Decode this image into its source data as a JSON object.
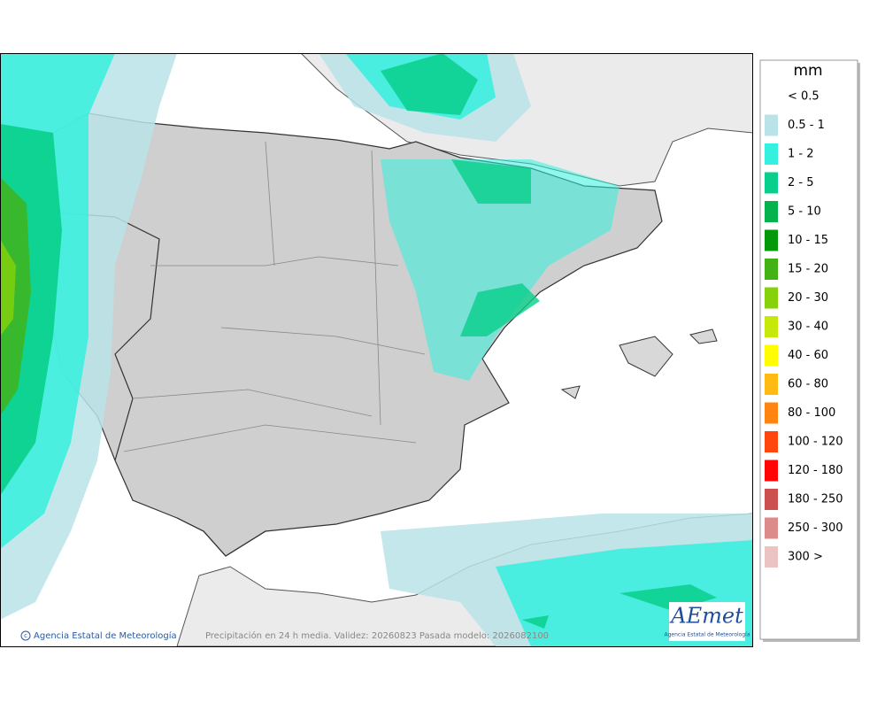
{
  "map": {
    "footer_left": "Agencia Estatal de Meteorología",
    "footer_center": "Precipitación en 24 h media. Validez: 20260823 Pasada modelo: 2026082100",
    "logo": "AEmet",
    "logo_caption": "Agencia Estatal de Meteorología"
  },
  "legend": {
    "title": "mm",
    "items": [
      {
        "label": "< 0.5"
      },
      {
        "label": "0.5 - 1",
        "color": "#b9e3e6"
      },
      {
        "label": "1 - 2",
        "color": "#35f0de"
      },
      {
        "label": "2 - 5",
        "color": "#08cf8b"
      },
      {
        "label": "5 - 10",
        "color": "#05b24e"
      },
      {
        "label": "10 - 15",
        "color": "#05990a"
      },
      {
        "label": "15 - 20",
        "color": "#43b214"
      },
      {
        "label": "20 - 30",
        "color": "#86d10a"
      },
      {
        "label": "30 - 40",
        "color": "#c6e80a"
      },
      {
        "label": "40 - 60",
        "color": "#fffc05"
      },
      {
        "label": "60 - 80",
        "color": "#ffbb14"
      },
      {
        "label": "80 - 100",
        "color": "#ff8410"
      },
      {
        "label": "100 - 120",
        "color": "#ff460c"
      },
      {
        "label": "120 - 180",
        "color": "#ff0505"
      },
      {
        "label": "180 - 250",
        "color": "#cc5050"
      },
      {
        "label": "250 - 300",
        "color": "#dc8a8a"
      },
      {
        "label": "300 >",
        "color": "#ecc3c3"
      }
    ]
  }
}
